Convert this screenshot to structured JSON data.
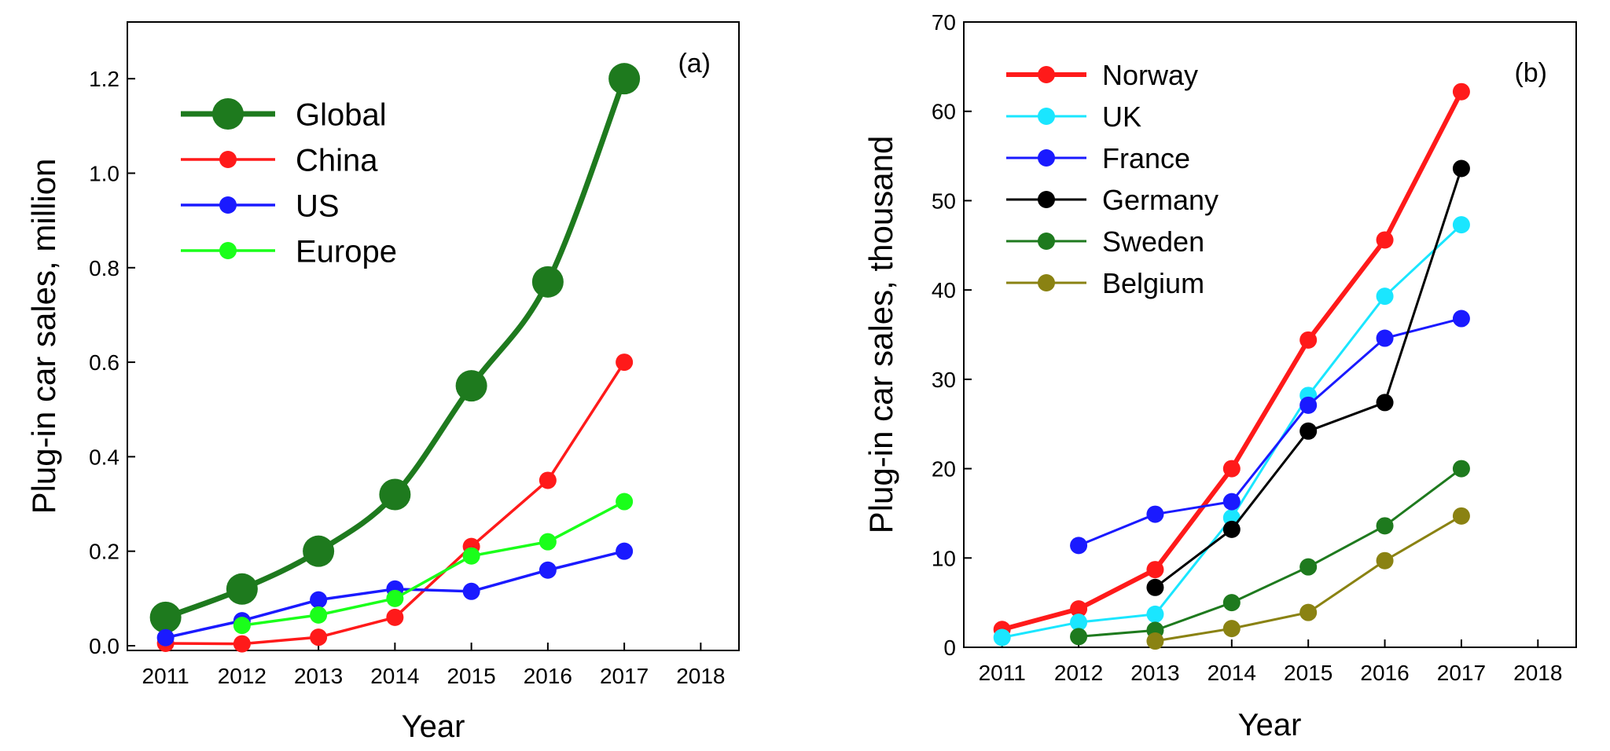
{
  "chart_data": [
    {
      "type": "line",
      "panel_label": "(a)",
      "xlabel": "Year",
      "ylabel": "Plug-in car sales, million",
      "xlim": [
        2010.5,
        2018.5
      ],
      "ylim": [
        -0.01,
        1.32
      ],
      "xticks": [
        2011,
        2012,
        2013,
        2014,
        2015,
        2016,
        2017,
        2018
      ],
      "yticks": [
        0.0,
        0.2,
        0.4,
        0.6,
        0.8,
        1.0,
        1.2
      ],
      "ytick_labels": [
        "0.0",
        "0.2",
        "0.4",
        "0.6",
        "0.8",
        "1.0",
        "1.2"
      ],
      "legend_position": "top-left",
      "series": [
        {
          "name": "Global",
          "color": "#1e7a1e",
          "emphasis": "bold",
          "x": [
            2011,
            2012,
            2013,
            2014,
            2015,
            2016,
            2017
          ],
          "values": [
            0.06,
            0.12,
            0.2,
            0.32,
            0.55,
            0.77,
            1.2
          ]
        },
        {
          "name": "China",
          "color": "#ff1a1a",
          "emphasis": "normal",
          "x": [
            2011,
            2012,
            2013,
            2014,
            2015,
            2016,
            2017
          ],
          "values": [
            0.005,
            0.004,
            0.018,
            0.06,
            0.21,
            0.35,
            0.6
          ]
        },
        {
          "name": "US",
          "color": "#1a1aff",
          "emphasis": "normal",
          "x": [
            2011,
            2012,
            2013,
            2014,
            2015,
            2016,
            2017
          ],
          "values": [
            0.017,
            0.053,
            0.097,
            0.12,
            0.115,
            0.16,
            0.2
          ]
        },
        {
          "name": "Europe",
          "color": "#1aff1a",
          "emphasis": "normal",
          "x": [
            2012,
            2013,
            2014,
            2015,
            2016,
            2017
          ],
          "values": [
            0.043,
            0.065,
            0.1,
            0.19,
            0.22,
            0.305
          ]
        }
      ]
    },
    {
      "type": "line",
      "panel_label": "(b)",
      "xlabel": "Year",
      "ylabel": "Plug-in car sales, thousand",
      "xlim": [
        2010.5,
        2018.5
      ],
      "ylim": [
        0,
        70
      ],
      "xticks": [
        2011,
        2012,
        2013,
        2014,
        2015,
        2016,
        2017,
        2018
      ],
      "yticks": [
        0,
        10,
        20,
        30,
        40,
        50,
        60,
        70
      ],
      "ytick_labels": [
        "0",
        "10",
        "20",
        "30",
        "40",
        "50",
        "60",
        "70"
      ],
      "legend_position": "top-left",
      "series": [
        {
          "name": "Norway",
          "color": "#ff1a1a",
          "emphasis": "bold",
          "x": [
            2011,
            2012,
            2013,
            2014,
            2015,
            2016,
            2017
          ],
          "values": [
            2.0,
            4.3,
            8.7,
            20.0,
            34.4,
            45.6,
            62.2
          ]
        },
        {
          "name": "UK",
          "color": "#1ae6ff",
          "emphasis": "normal",
          "x": [
            2011,
            2012,
            2013,
            2014,
            2015,
            2016,
            2017
          ],
          "values": [
            1.1,
            2.8,
            3.7,
            14.5,
            28.2,
            39.3,
            47.3
          ]
        },
        {
          "name": "France",
          "color": "#1a1aff",
          "emphasis": "normal",
          "x": [
            2012,
            2013,
            2014,
            2015,
            2016,
            2017
          ],
          "values": [
            11.4,
            14.9,
            16.3,
            27.1,
            34.6,
            36.8
          ]
        },
        {
          "name": "Germany",
          "color": "#000000",
          "emphasis": "normal",
          "x": [
            2013,
            2014,
            2015,
            2016,
            2017
          ],
          "values": [
            6.7,
            13.2,
            24.2,
            27.4,
            53.6
          ]
        },
        {
          "name": "Sweden",
          "color": "#1e7a1e",
          "emphasis": "normal",
          "x": [
            2012,
            2013,
            2014,
            2015,
            2016,
            2017
          ],
          "values": [
            1.2,
            1.9,
            5.0,
            9.0,
            13.6,
            20.0
          ]
        },
        {
          "name": "Belgium",
          "color": "#8a8212",
          "emphasis": "normal",
          "x": [
            2013,
            2014,
            2015,
            2016,
            2017
          ],
          "values": [
            0.7,
            2.1,
            3.9,
            9.7,
            14.7
          ]
        }
      ]
    }
  ]
}
